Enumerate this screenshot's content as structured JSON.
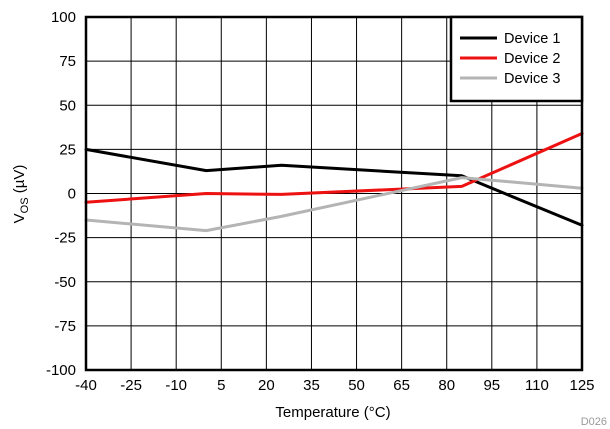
{
  "chart_data": {
    "type": "line",
    "title": "",
    "xlabel": "Temperature (°C)",
    "ylabel": "VOS (µV)",
    "ylabel_main": "V",
    "ylabel_sub": "OS",
    "ylabel_unit": " (µV)",
    "xlim": [
      -40,
      125
    ],
    "ylim": [
      -100,
      100
    ],
    "x_ticks": [
      -40,
      -25,
      -10,
      5,
      20,
      35,
      50,
      65,
      80,
      95,
      110,
      125
    ],
    "y_ticks": [
      100,
      75,
      50,
      25,
      0,
      -25,
      -50,
      -75,
      -100
    ],
    "grid": true,
    "legend_position": "top-right",
    "series": [
      {
        "name": "Device 1",
        "color": "#000000",
        "x": [
          -40,
          0,
          25,
          85,
          125
        ],
        "y": [
          25,
          13,
          16,
          10,
          -18
        ]
      },
      {
        "name": "Device 2",
        "color": "#ee1111",
        "x": [
          -40,
          0,
          25,
          85,
          125
        ],
        "y": [
          -5,
          0,
          -0.5,
          4,
          34
        ]
      },
      {
        "name": "Device 3",
        "color": "#b4b4b4",
        "x": [
          -40,
          0,
          25,
          85,
          125
        ],
        "y": [
          -15,
          -21,
          -13,
          9,
          3
        ]
      }
    ],
    "figure_code": "D026"
  }
}
